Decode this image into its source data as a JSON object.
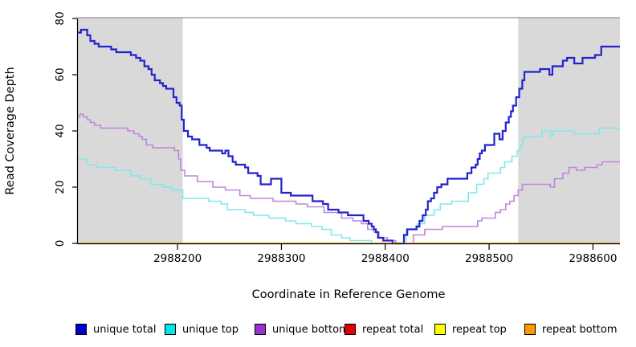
{
  "chart_data": {
    "type": "line",
    "subtype": "step-coverage",
    "title": "",
    "xlabel": "Coordinate in Reference Genome",
    "ylabel": "Read Coverage Depth",
    "xlim": [
      2988104,
      2988626
    ],
    "ylim": [
      0,
      80
    ],
    "grid": false,
    "legend_position": "bottom-horizontal",
    "x_ticks": [
      2988200,
      2988300,
      2988400,
      2988500,
      2988600
    ],
    "x_tick_labels": [
      "2988200",
      "2988300",
      "2988400",
      "2988500",
      "2988600"
    ],
    "y_ticks": [
      0,
      20,
      40,
      60,
      80
    ],
    "y_tick_labels": [
      "0",
      "20",
      "40",
      "60",
      "80"
    ],
    "shade_color": "#d9d9d9",
    "frame_color": "#8f8f8f",
    "shaded_regions": [
      {
        "x0": 2988104,
        "x1": 2988205
      },
      {
        "x0": 2988528,
        "x1": 2988626
      }
    ],
    "series": [
      {
        "name": "unique total",
        "color": "#0000cc",
        "line_color": "#2323cd",
        "line_width": 2.2,
        "points": [
          [
            2988104,
            75
          ],
          [
            2988107,
            76
          ],
          [
            2988113,
            74
          ],
          [
            2988116,
            72
          ],
          [
            2988120,
            71
          ],
          [
            2988124,
            70
          ],
          [
            2988136,
            69
          ],
          [
            2988141,
            68
          ],
          [
            2988155,
            67
          ],
          [
            2988160,
            66
          ],
          [
            2988164,
            65
          ],
          [
            2988168,
            63
          ],
          [
            2988172,
            62
          ],
          [
            2988175,
            60
          ],
          [
            2988178,
            58
          ],
          [
            2988183,
            57
          ],
          [
            2988186,
            56
          ],
          [
            2988189,
            55
          ],
          [
            2988196,
            52
          ],
          [
            2988199,
            50
          ],
          [
            2988202,
            49
          ],
          [
            2988204,
            44
          ],
          [
            2988206,
            40
          ],
          [
            2988210,
            38
          ],
          [
            2988214,
            37
          ],
          [
            2988221,
            35
          ],
          [
            2988228,
            34
          ],
          [
            2988231,
            33
          ],
          [
            2988243,
            32
          ],
          [
            2988246,
            33
          ],
          [
            2988249,
            31
          ],
          [
            2988253,
            29
          ],
          [
            2988256,
            28
          ],
          [
            2988265,
            27
          ],
          [
            2988268,
            25
          ],
          [
            2988277,
            24
          ],
          [
            2988280,
            21
          ],
          [
            2988290,
            23
          ],
          [
            2988300,
            18
          ],
          [
            2988309,
            17
          ],
          [
            2988330,
            15
          ],
          [
            2988340,
            14
          ],
          [
            2988345,
            12
          ],
          [
            2988355,
            11
          ],
          [
            2988364,
            10
          ],
          [
            2988379,
            8
          ],
          [
            2988384,
            7
          ],
          [
            2988387,
            6
          ],
          [
            2988389,
            5
          ],
          [
            2988391,
            4
          ],
          [
            2988393,
            2
          ],
          [
            2988398,
            1
          ],
          [
            2988407,
            0
          ],
          [
            2988418,
            3
          ],
          [
            2988421,
            5
          ],
          [
            2988430,
            6
          ],
          [
            2988433,
            8
          ],
          [
            2988436,
            10
          ],
          [
            2988439,
            12
          ],
          [
            2988441,
            15
          ],
          [
            2988444,
            16
          ],
          [
            2988447,
            18
          ],
          [
            2988450,
            20
          ],
          [
            2988454,
            21
          ],
          [
            2988460,
            23
          ],
          [
            2988479,
            25
          ],
          [
            2988483,
            27
          ],
          [
            2988487,
            28
          ],
          [
            2988489,
            30
          ],
          [
            2988491,
            32
          ],
          [
            2988493,
            33
          ],
          [
            2988496,
            35
          ],
          [
            2988505,
            39
          ],
          [
            2988510,
            37
          ],
          [
            2988513,
            40
          ],
          [
            2988516,
            43
          ],
          [
            2988519,
            45
          ],
          [
            2988521,
            47
          ],
          [
            2988523,
            49
          ],
          [
            2988526,
            52
          ],
          [
            2988529,
            55
          ],
          [
            2988532,
            58
          ],
          [
            2988534,
            61
          ],
          [
            2988549,
            62
          ],
          [
            2988558,
            60
          ],
          [
            2988561,
            63
          ],
          [
            2988571,
            65
          ],
          [
            2988575,
            66
          ],
          [
            2988582,
            64
          ],
          [
            2988590,
            66
          ],
          [
            2988602,
            67
          ],
          [
            2988608,
            70
          ]
        ]
      },
      {
        "name": "unique top",
        "color": "#00e5e5",
        "line_color": "#80e8ec",
        "line_width": 1.6,
        "points": [
          [
            2988104,
            30
          ],
          [
            2988113,
            28
          ],
          [
            2988122,
            27
          ],
          [
            2988140,
            26
          ],
          [
            2988155,
            24
          ],
          [
            2988164,
            23
          ],
          [
            2988174,
            21
          ],
          [
            2988186,
            20
          ],
          [
            2988194,
            19
          ],
          [
            2988205,
            16
          ],
          [
            2988230,
            15
          ],
          [
            2988242,
            14
          ],
          [
            2988248,
            12
          ],
          [
            2988265,
            11
          ],
          [
            2988273,
            10
          ],
          [
            2988288,
            9
          ],
          [
            2988304,
            8
          ],
          [
            2988314,
            7
          ],
          [
            2988329,
            6
          ],
          [
            2988339,
            5
          ],
          [
            2988348,
            3
          ],
          [
            2988358,
            2
          ],
          [
            2988366,
            1
          ],
          [
            2988387,
            0
          ],
          [
            2988420,
            3
          ],
          [
            2988422,
            5
          ],
          [
            2988431,
            7
          ],
          [
            2988438,
            10
          ],
          [
            2988447,
            12
          ],
          [
            2988453,
            14
          ],
          [
            2988464,
            15
          ],
          [
            2988480,
            18
          ],
          [
            2988488,
            21
          ],
          [
            2988495,
            23
          ],
          [
            2988499,
            25
          ],
          [
            2988511,
            27
          ],
          [
            2988515,
            29
          ],
          [
            2988522,
            31
          ],
          [
            2988527,
            33
          ],
          [
            2988530,
            35
          ],
          [
            2988532,
            37
          ],
          [
            2988534,
            38
          ],
          [
            2988551,
            40
          ],
          [
            2988559,
            38
          ],
          [
            2988561,
            40
          ],
          [
            2988582,
            39
          ],
          [
            2988606,
            41
          ]
        ]
      },
      {
        "name": "unique bottom",
        "color": "#9932cc",
        "line_color": "#bf86dc",
        "line_width": 1.6,
        "points": [
          [
            2988104,
            45
          ],
          [
            2988106,
            46
          ],
          [
            2988109,
            45
          ],
          [
            2988113,
            44
          ],
          [
            2988116,
            43
          ],
          [
            2988120,
            42
          ],
          [
            2988126,
            41
          ],
          [
            2988152,
            40
          ],
          [
            2988158,
            39
          ],
          [
            2988163,
            38
          ],
          [
            2988166,
            37
          ],
          [
            2988170,
            35
          ],
          [
            2988176,
            34
          ],
          [
            2988197,
            33
          ],
          [
            2988201,
            30
          ],
          [
            2988203,
            26
          ],
          [
            2988207,
            24
          ],
          [
            2988219,
            22
          ],
          [
            2988234,
            20
          ],
          [
            2988246,
            19
          ],
          [
            2988260,
            17
          ],
          [
            2988270,
            16
          ],
          [
            2988292,
            15
          ],
          [
            2988314,
            14
          ],
          [
            2988325,
            13
          ],
          [
            2988341,
            11
          ],
          [
            2988358,
            9
          ],
          [
            2988369,
            8
          ],
          [
            2988377,
            7
          ],
          [
            2988383,
            5
          ],
          [
            2988389,
            4
          ],
          [
            2988394,
            2
          ],
          [
            2988402,
            1
          ],
          [
            2988410,
            0
          ],
          [
            2988427,
            3
          ],
          [
            2988438,
            5
          ],
          [
            2988455,
            6
          ],
          [
            2988489,
            8
          ],
          [
            2988493,
            9
          ],
          [
            2988506,
            11
          ],
          [
            2988511,
            12
          ],
          [
            2988516,
            14
          ],
          [
            2988520,
            15
          ],
          [
            2988524,
            17
          ],
          [
            2988528,
            19
          ],
          [
            2988532,
            21
          ],
          [
            2988559,
            20
          ],
          [
            2988563,
            23
          ],
          [
            2988571,
            25
          ],
          [
            2988577,
            27
          ],
          [
            2988584,
            26
          ],
          [
            2988592,
            27
          ],
          [
            2988604,
            28
          ],
          [
            2988609,
            29
          ]
        ]
      },
      {
        "name": "repeat total",
        "color": "#e60000",
        "line_color": "#e60000",
        "line_width": 1.6,
        "points": [
          [
            2988104,
            0
          ]
        ]
      },
      {
        "name": "repeat top",
        "color": "#ffff00",
        "line_color": "#ffff00",
        "line_width": 1.6,
        "points": [
          [
            2988104,
            0
          ]
        ]
      },
      {
        "name": "repeat bottom",
        "color": "#ff9900",
        "line_color": "#ff9f0a",
        "line_width": 1.6,
        "points": [
          [
            2988104,
            0
          ]
        ]
      }
    ]
  }
}
